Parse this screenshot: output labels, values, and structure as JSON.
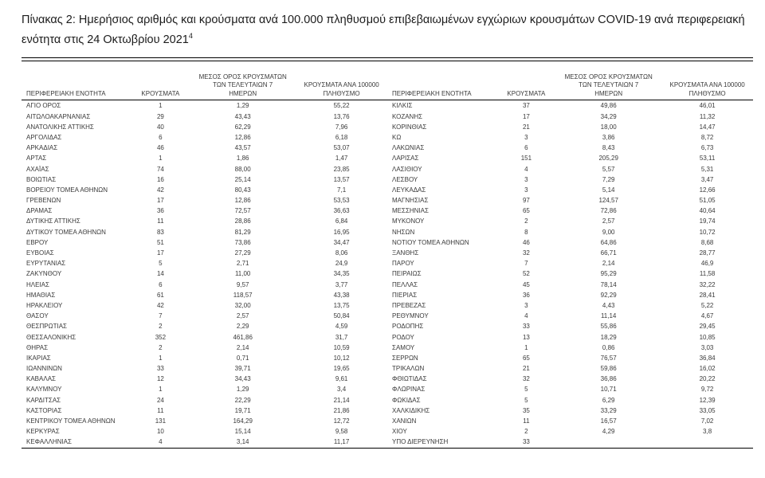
{
  "page": {
    "title": "Πίνακας 2: Ημερήσιος αριθμός και κρούσματα ανά 100.000 πληθυσμού επιβεβαιωμένων εγχώριων κρουσμάτων COVID-19 ανά περιφερειακή ενότητα στις 24 Οκτωβρίου 2021",
    "title_footnote_marker": "4"
  },
  "colors": {
    "rule": "#000000",
    "text": "#3a3a3a",
    "title_text": "#1c1c1c",
    "background": "#ffffff"
  },
  "table": {
    "headers": {
      "region": "ΠΕΡΙΦΕΡΕΙΑΚΗ ΕΝΟΤΗΤΑ",
      "cases": "ΚΡΟΥΣΜΑΤΑ",
      "avg7": "ΜΕΣΟΣ ΟΡΟΣ ΚΡΟΥΣΜΑΤΩΝ\nΤΩΝ ΤΕΛΕΥΤΑΙΩΝ 7\nΗΜΕΡΩΝ",
      "per100k": "ΚΡΟΥΣΜΑΤΑ ΑΝΑ 100000\nΠΛΗΘΥΣΜΟ"
    },
    "left_rows": [
      [
        "ΑΓΙΟ ΟΡΟΣ",
        "1",
        "1,29",
        "55,22"
      ],
      [
        "ΑΙΤΩΛΟΑΚΑΡΝΑΝΙΑΣ",
        "29",
        "43,43",
        "13,76"
      ],
      [
        "ΑΝΑΤΟΛΙΚΗΣ ΑΤΤΙΚΗΣ",
        "40",
        "62,29",
        "7,96"
      ],
      [
        "ΑΡΓΟΛΙΔΑΣ",
        "6",
        "12,86",
        "6,18"
      ],
      [
        "ΑΡΚΑΔΙΑΣ",
        "46",
        "43,57",
        "53,07"
      ],
      [
        "ΑΡΤΑΣ",
        "1",
        "1,86",
        "1,47"
      ],
      [
        "ΑΧΑΪΑΣ",
        "74",
        "88,00",
        "23,85"
      ],
      [
        "ΒΟΙΩΤΙΑΣ",
        "16",
        "25,14",
        "13,57"
      ],
      [
        "ΒΟΡΕΙΟΥ ΤΟΜΕΑ ΑΘΗΝΩΝ",
        "42",
        "80,43",
        "7,1"
      ],
      [
        "ΓΡΕΒΕΝΩΝ",
        "17",
        "12,86",
        "53,53"
      ],
      [
        "ΔΡΑΜΑΣ",
        "36",
        "72,57",
        "36,63"
      ],
      [
        "ΔΥΤΙΚΗΣ ΑΤΤΙΚΗΣ",
        "11",
        "28,86",
        "6,84"
      ],
      [
        "ΔΥΤΙΚΟΥ ΤΟΜΕΑ ΑΘΗΝΩΝ",
        "83",
        "81,29",
        "16,95"
      ],
      [
        "ΕΒΡΟΥ",
        "51",
        "73,86",
        "34,47"
      ],
      [
        "ΕΥΒΟΙΑΣ",
        "17",
        "27,29",
        "8,06"
      ],
      [
        "ΕΥΡΥΤΑΝΙΑΣ",
        "5",
        "2,71",
        "24,9"
      ],
      [
        "ΖΑΚΥΝΘΟΥ",
        "14",
        "11,00",
        "34,35"
      ],
      [
        "ΗΛΕΙΑΣ",
        "6",
        "9,57",
        "3,77"
      ],
      [
        "ΗΜΑΘΙΑΣ",
        "61",
        "118,57",
        "43,38"
      ],
      [
        "ΗΡΑΚΛΕΙΟΥ",
        "42",
        "32,00",
        "13,75"
      ],
      [
        "ΘΑΣΟΥ",
        "7",
        "2,57",
        "50,84"
      ],
      [
        "ΘΕΣΠΡΩΤΙΑΣ",
        "2",
        "2,29",
        "4,59"
      ],
      [
        "ΘΕΣΣΑΛΟΝΙΚΗΣ",
        "352",
        "461,86",
        "31,7"
      ],
      [
        "ΘΗΡΑΣ",
        "2",
        "2,14",
        "10,59"
      ],
      [
        "ΙΚΑΡΙΑΣ",
        "1",
        "0,71",
        "10,12"
      ],
      [
        "ΙΩΑΝΝΙΝΩΝ",
        "33",
        "39,71",
        "19,65"
      ],
      [
        "ΚΑΒΑΛΑΣ",
        "12",
        "34,43",
        "9,61"
      ],
      [
        "ΚΑΛΥΜΝΟΥ",
        "1",
        "1,29",
        "3,4"
      ],
      [
        "ΚΑΡΔΙΤΣΑΣ",
        "24",
        "22,29",
        "21,14"
      ],
      [
        "ΚΑΣΤΟΡΙΑΣ",
        "11",
        "19,71",
        "21,86"
      ],
      [
        "ΚΕΝΤΡΙΚΟΥ ΤΟΜΕΑ ΑΘΗΝΩΝ",
        "131",
        "164,29",
        "12,72"
      ],
      [
        "ΚΕΡΚΥΡΑΣ",
        "10",
        "15,14",
        "9,58"
      ],
      [
        "ΚΕΦΑΛΛΗΝΙΑΣ",
        "4",
        "3,14",
        "11,17"
      ]
    ],
    "right_rows": [
      [
        "ΚΙΛΚΙΣ",
        "37",
        "49,86",
        "46,01"
      ],
      [
        "ΚΟΖΑΝΗΣ",
        "17",
        "34,29",
        "11,32"
      ],
      [
        "ΚΟΡΙΝΘΙΑΣ",
        "21",
        "18,00",
        "14,47"
      ],
      [
        "ΚΩ",
        "3",
        "3,86",
        "8,72"
      ],
      [
        "ΛΑΚΩΝΙΑΣ",
        "6",
        "8,43",
        "6,73"
      ],
      [
        "ΛΑΡΙΣΑΣ",
        "151",
        "205,29",
        "53,11"
      ],
      [
        "ΛΑΣΙΘΙΟΥ",
        "4",
        "5,57",
        "5,31"
      ],
      [
        "ΛΕΣΒΟΥ",
        "3",
        "7,29",
        "3,47"
      ],
      [
        "ΛΕΥΚΑΔΑΣ",
        "3",
        "5,14",
        "12,66"
      ],
      [
        "ΜΑΓΝΗΣΙΑΣ",
        "97",
        "124,57",
        "51,05"
      ],
      [
        "ΜΕΣΣΗΝΙΑΣ",
        "65",
        "72,86",
        "40,64"
      ],
      [
        "ΜΥΚΟΝΟΥ",
        "2",
        "2,57",
        "19,74"
      ],
      [
        "ΝΗΣΩΝ",
        "8",
        "9,00",
        "10,72"
      ],
      [
        "ΝΟΤΙΟΥ ΤΟΜΕΑ ΑΘΗΝΩΝ",
        "46",
        "64,86",
        "8,68"
      ],
      [
        "ΞΑΝΘΗΣ",
        "32",
        "66,71",
        "28,77"
      ],
      [
        "ΠΑΡΟΥ",
        "7",
        "2,14",
        "46,9"
      ],
      [
        "ΠΕΙΡΑΙΩΣ",
        "52",
        "95,29",
        "11,58"
      ],
      [
        "ΠΕΛΛΑΣ",
        "45",
        "78,14",
        "32,22"
      ],
      [
        "ΠΙΕΡΙΑΣ",
        "36",
        "92,29",
        "28,41"
      ],
      [
        "ΠΡΕΒΕΖΑΣ",
        "3",
        "4,43",
        "5,22"
      ],
      [
        "ΡΕΘΥΜΝΟΥ",
        "4",
        "11,14",
        "4,67"
      ],
      [
        "ΡΟΔΟΠΗΣ",
        "33",
        "55,86",
        "29,45"
      ],
      [
        "ΡΟΔΟΥ",
        "13",
        "18,29",
        "10,85"
      ],
      [
        "ΣΑΜΟΥ",
        "1",
        "0,86",
        "3,03"
      ],
      [
        "ΣΕΡΡΩΝ",
        "65",
        "76,57",
        "36,84"
      ],
      [
        "ΤΡΙΚΑΛΩΝ",
        "21",
        "59,86",
        "16,02"
      ],
      [
        "ΦΘΙΩΤΙΔΑΣ",
        "32",
        "36,86",
        "20,22"
      ],
      [
        "ΦΛΩΡΙΝΑΣ",
        "5",
        "10,71",
        "9,72"
      ],
      [
        "ΦΩΚΙΔΑΣ",
        "5",
        "6,29",
        "12,39"
      ],
      [
        "ΧΑΛΚΙΔΙΚΗΣ",
        "35",
        "33,29",
        "33,05"
      ],
      [
        "ΧΑΝΙΩΝ",
        "11",
        "16,57",
        "7,02"
      ],
      [
        "ΧΙΟΥ",
        "2",
        "4,29",
        "3,8"
      ],
      [
        "ΥΠΟ ΔΙΕΡΕΥΝΗΣΗ",
        "33",
        "",
        ""
      ]
    ]
  }
}
